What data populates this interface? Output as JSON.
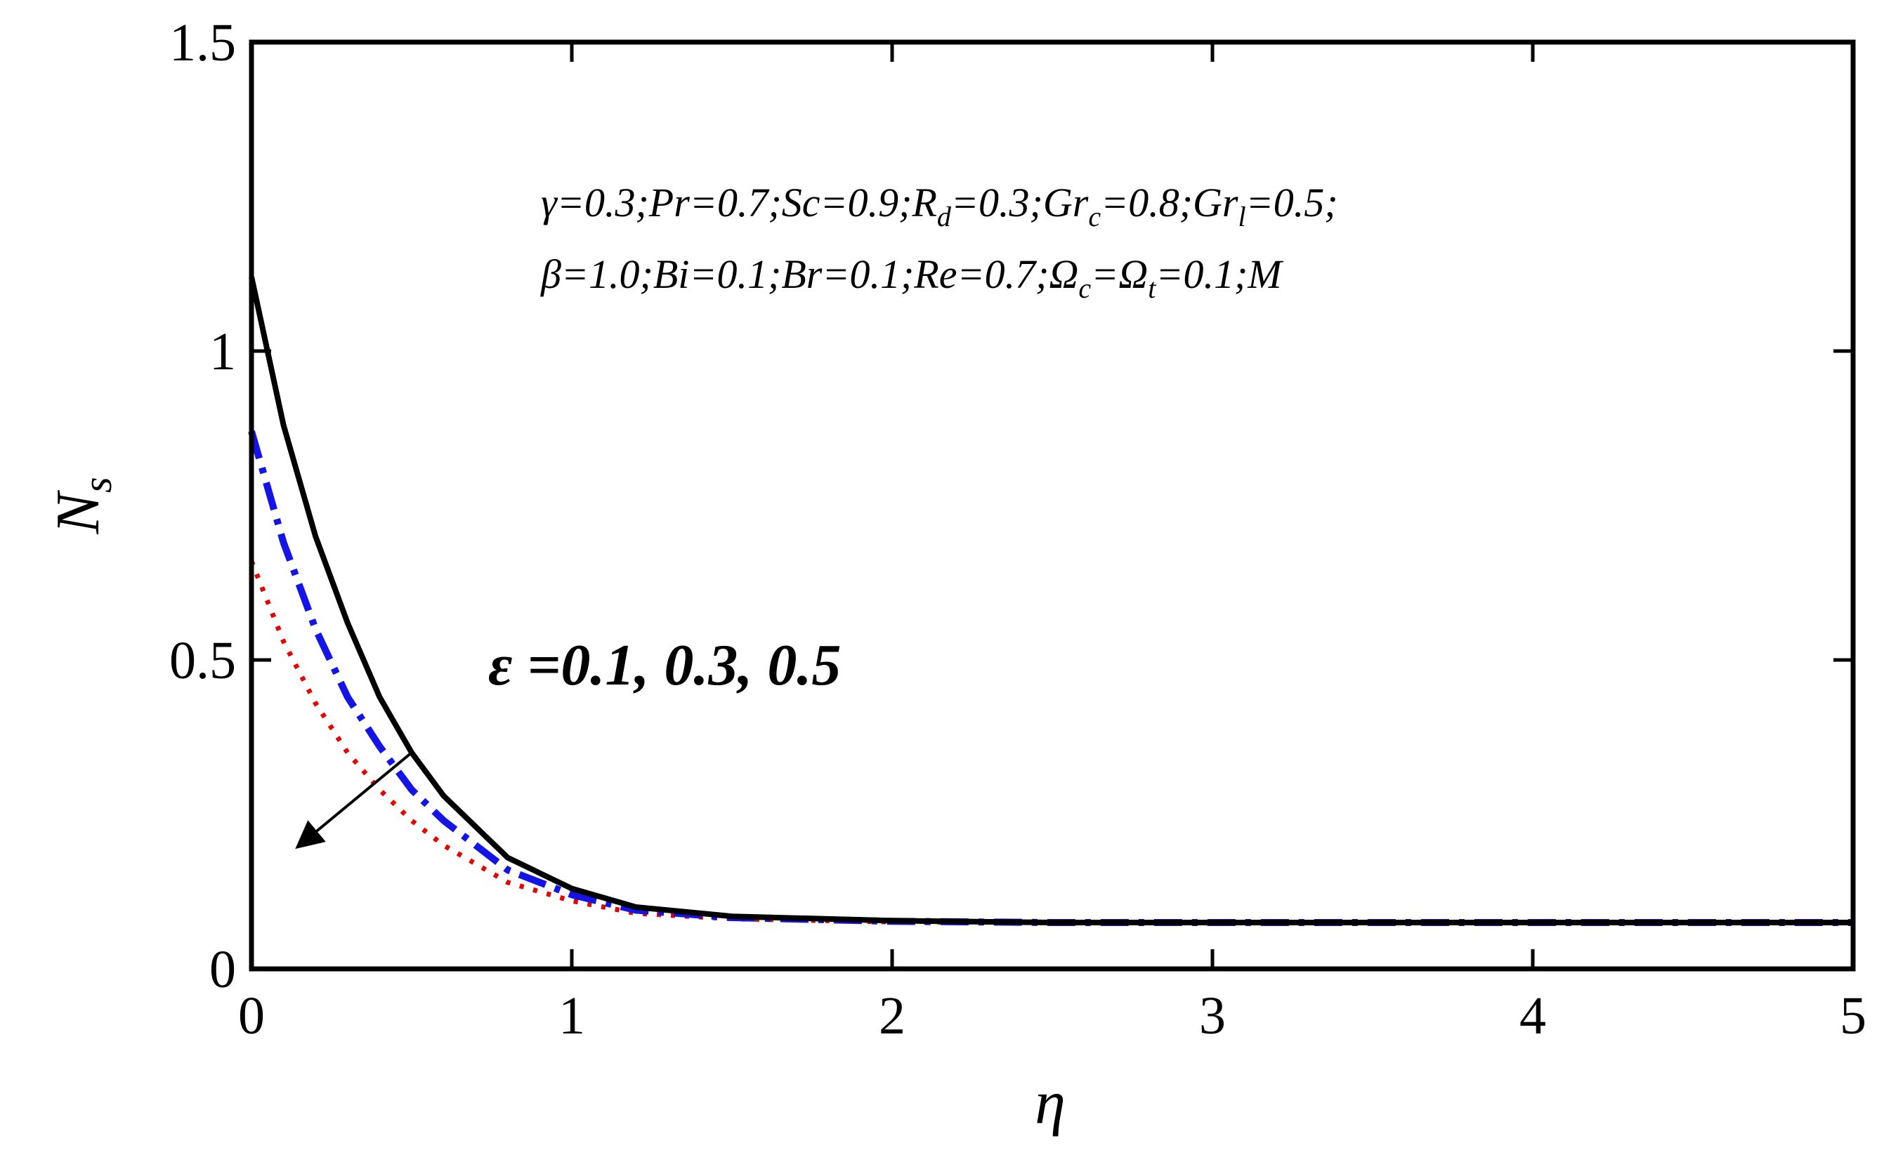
{
  "chart_data": {
    "type": "line",
    "xlabel": "η",
    "ylabel": "N",
    "ylabel_sub": "s",
    "xlim": [
      0,
      5
    ],
    "ylim": [
      0,
      1.5
    ],
    "x_ticks": [
      "0",
      "1",
      "2",
      "3",
      "4",
      "5"
    ],
    "y_ticks": [
      "0",
      "0.5",
      "1",
      "1.5"
    ],
    "grid": false,
    "legend": "none",
    "params_line1": [
      {
        "t": "γ=0.3;Pr=0.7;Sc=0.9;R"
      },
      {
        "t": "d",
        "sub": true
      },
      {
        "t": "=0.3;Gr"
      },
      {
        "t": "c",
        "sub": true
      },
      {
        "t": "=0.8;Gr"
      },
      {
        "t": "l",
        "sub": true
      },
      {
        "t": "=0.5;"
      }
    ],
    "params_line2": [
      {
        "t": "β=1.0;Bi=0.1;Br=0.1;Re=0.7;Ω"
      },
      {
        "t": "c",
        "sub": true
      },
      {
        "t": "=Ω"
      },
      {
        "t": "t",
        "sub": true
      },
      {
        "t": "=0.1;M"
      }
    ],
    "annotation": "ε =0.1, 0.3, 0.5",
    "arrow": {
      "from": [
        0.5,
        0.35
      ],
      "to": [
        0.15,
        0.2
      ]
    },
    "series": [
      {
        "color": "#000000",
        "style": "solid",
        "x": [
          0,
          0.1,
          0.2,
          0.3,
          0.4,
          0.5,
          0.6,
          0.8,
          1.0,
          1.2,
          1.5,
          2.0,
          2.5,
          3.0,
          3.5,
          4.0,
          4.5,
          5.0
        ],
        "y": [
          1.12,
          0.88,
          0.7,
          0.56,
          0.44,
          0.35,
          0.28,
          0.18,
          0.13,
          0.1,
          0.085,
          0.078,
          0.075,
          0.075,
          0.075,
          0.075,
          0.075,
          0.075
        ]
      },
      {
        "color": "#1414e6",
        "style": "dashdot",
        "x": [
          0,
          0.1,
          0.2,
          0.3,
          0.4,
          0.5,
          0.6,
          0.8,
          1.0,
          1.2,
          1.5,
          2.0,
          2.5,
          3.0,
          3.5,
          4.0,
          4.5,
          5.0
        ],
        "y": [
          0.87,
          0.69,
          0.55,
          0.44,
          0.36,
          0.29,
          0.24,
          0.16,
          0.12,
          0.095,
          0.083,
          0.077,
          0.075,
          0.075,
          0.075,
          0.075,
          0.075,
          0.075
        ]
      },
      {
        "color": "#e60000",
        "style": "dotted",
        "x": [
          0,
          0.1,
          0.2,
          0.3,
          0.4,
          0.5,
          0.6,
          0.8,
          1.0,
          1.2,
          1.5,
          2.0,
          2.5,
          3.0,
          3.5,
          4.0,
          4.5,
          5.0
        ],
        "y": [
          0.66,
          0.53,
          0.43,
          0.35,
          0.29,
          0.24,
          0.2,
          0.14,
          0.11,
          0.09,
          0.081,
          0.076,
          0.075,
          0.075,
          0.075,
          0.075,
          0.075,
          0.075
        ]
      }
    ]
  }
}
